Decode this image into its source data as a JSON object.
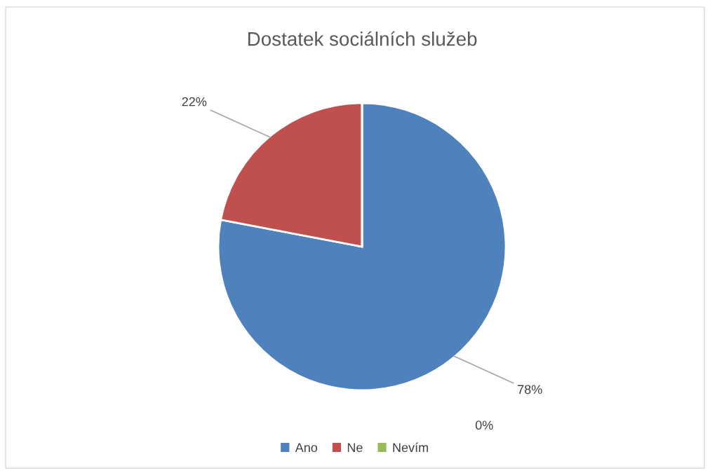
{
  "chart_data": {
    "type": "pie",
    "title": "Dostatek sociálních služeb",
    "categories": [
      "Ano",
      "Ne",
      "Nevím"
    ],
    "values": [
      78,
      22,
      0
    ],
    "colors": [
      "#4f81bd",
      "#c0504d",
      "#9bbb59"
    ],
    "value_labels": [
      "78%",
      "22%",
      "0%"
    ],
    "legend": "bottom"
  }
}
